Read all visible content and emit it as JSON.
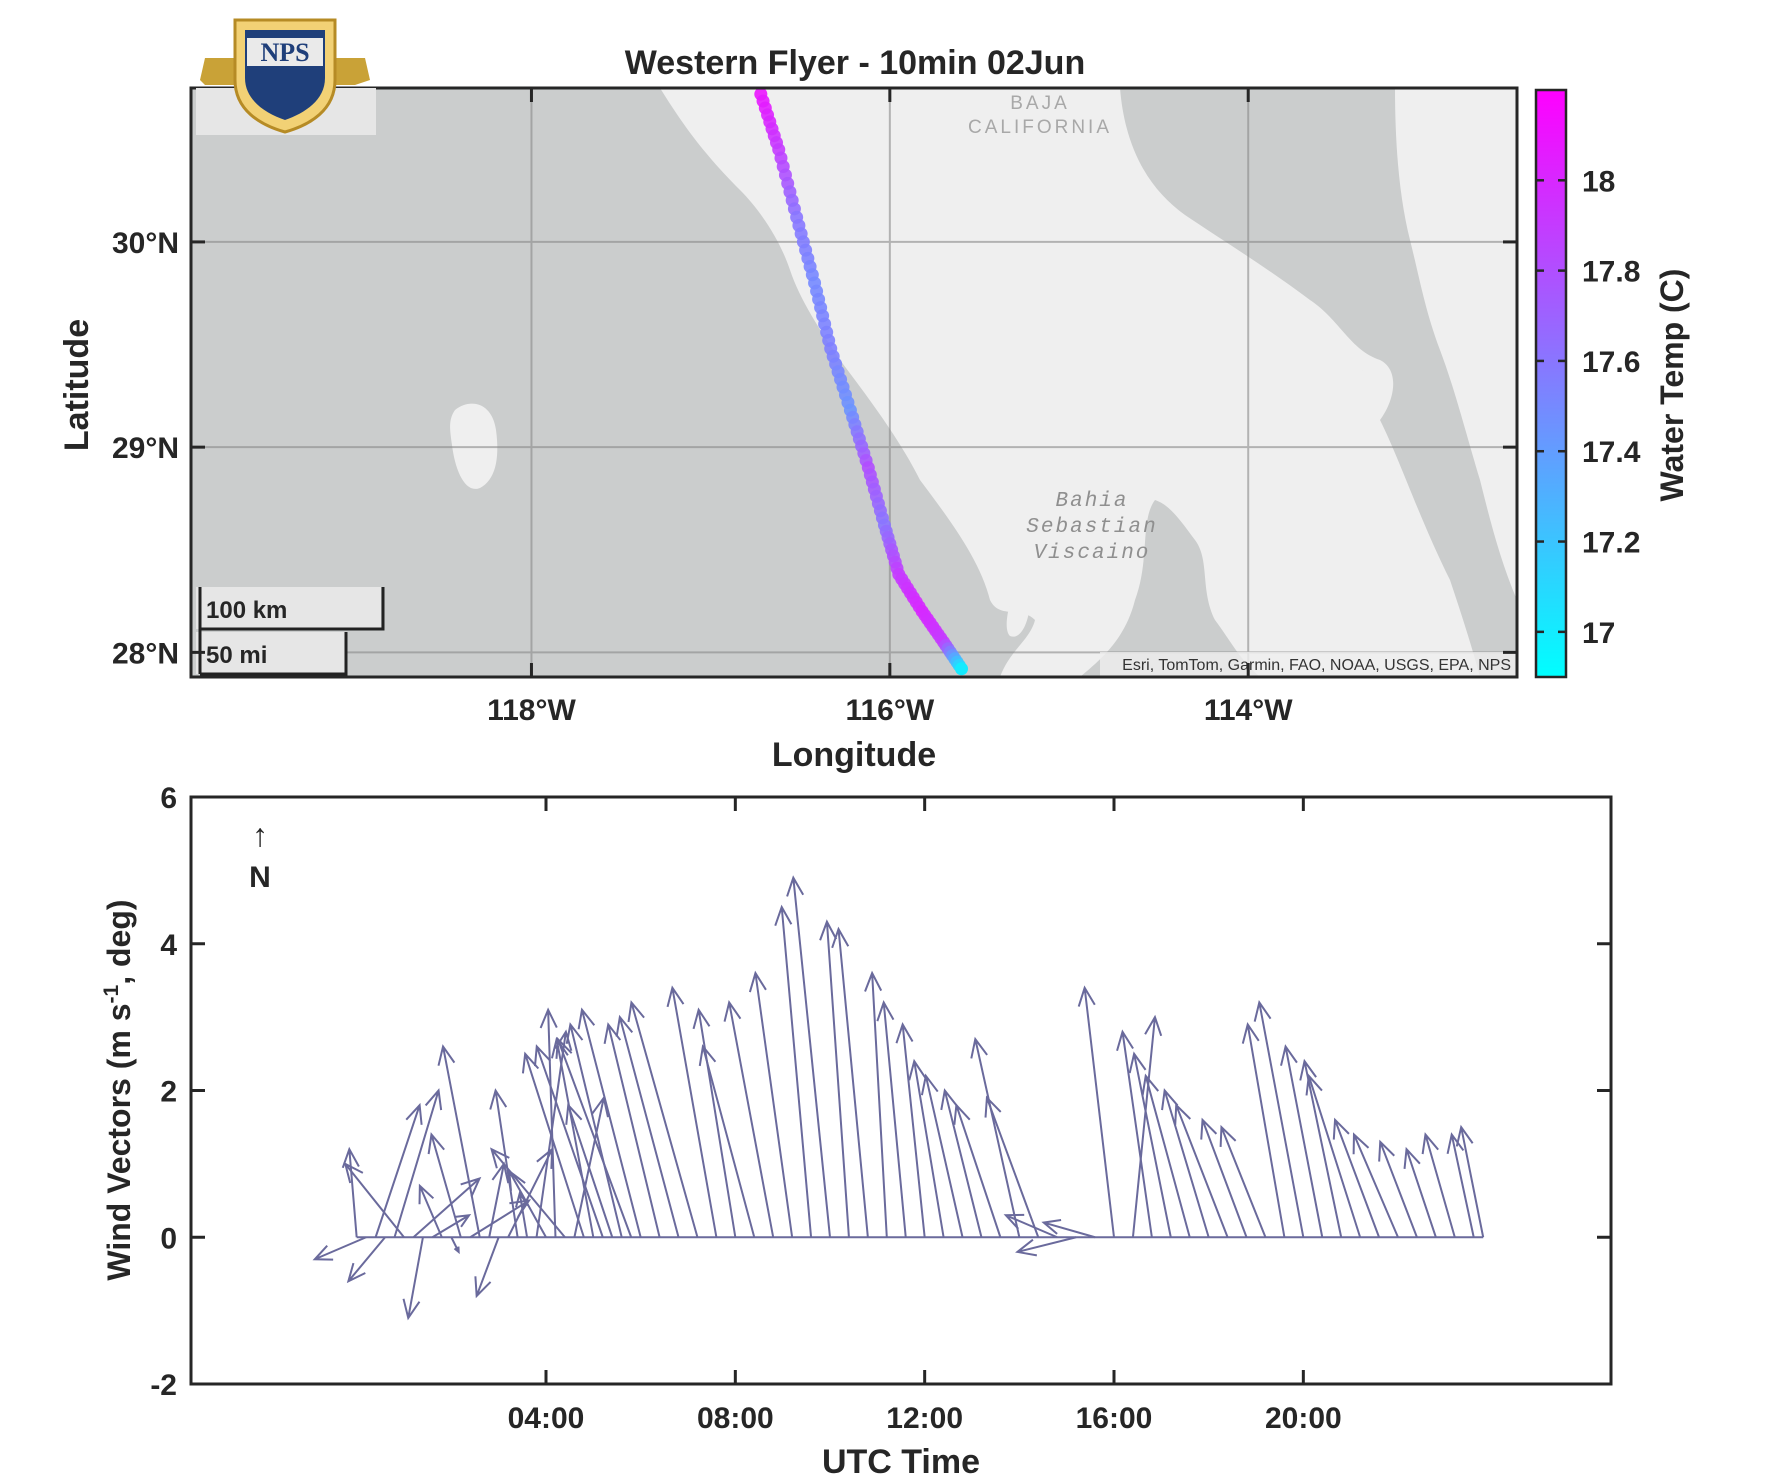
{
  "chart_data": [
    {
      "type": "scatter",
      "title": "Western Flyer - 10min 02Jun",
      "xlabel": "Longitude",
      "ylabel": "Latitude",
      "xlim": [
        -119.9,
        -112.5
      ],
      "ylim": [
        27.88,
        30.75
      ],
      "x_ticks": [
        "118°W",
        "116°W",
        "114°W"
      ],
      "x_tick_values": [
        -118,
        -116,
        -114
      ],
      "y_ticks": [
        "30°N",
        "29°N",
        "28°N"
      ],
      "y_tick_values": [
        30,
        29,
        28
      ],
      "grid": true,
      "basemap_labels": [
        "BAJA",
        "CALIFORNIA",
        "Bahia",
        "Sebastian",
        "Viscaino"
      ],
      "attribution": "Esri, TomTom, Garmin, FAO, NOAA, USGS, EPA, NPS",
      "scalebar": [
        "100 km",
        "50 mi"
      ],
      "logo_text": "NPS",
      "colorbar": {
        "label": "Water Temp (C)",
        "ticks": [
          "18",
          "17.8",
          "17.6",
          "17.4",
          "17.2",
          "17"
        ],
        "tick_values": [
          18,
          17.8,
          17.6,
          17.4,
          17.2,
          17
        ],
        "range": [
          16.9,
          18.2
        ],
        "colors": [
          "#00ffff",
          "#ff00ff"
        ]
      },
      "track": {
        "lon": [
          -116.72,
          -116.62,
          -116.52,
          -116.42,
          -116.33,
          -116.22,
          -116.12,
          -116.03,
          -115.95,
          -115.82,
          -115.7,
          -115.6
        ],
        "lat": [
          30.72,
          30.45,
          30.12,
          29.8,
          29.48,
          29.18,
          28.9,
          28.62,
          28.38,
          28.2,
          28.05,
          27.92
        ],
        "temp": [
          18.1,
          17.9,
          17.6,
          17.5,
          17.55,
          17.45,
          17.8,
          17.6,
          17.9,
          18.0,
          17.9,
          17.0
        ]
      }
    },
    {
      "type": "quiver",
      "xlabel": "UTC Time",
      "ylabel": "Wind Vectors (m s-1, deg)",
      "ylim": [
        -2,
        6
      ],
      "y_ticks": [
        6,
        4,
        2,
        0,
        -2
      ],
      "x_ticks": [
        "04:00",
        "08:00",
        "12:00",
        "16:00",
        "20:00"
      ],
      "x_tick_hours": [
        4,
        8,
        12,
        16,
        20
      ],
      "xlim_hours": [
        -3.5,
        26.5
      ],
      "north_arrow": {
        "arrow": "↑",
        "label": "N"
      },
      "color": "#6a6a9c",
      "vectors": {
        "t_hours": [
          0.0,
          0.2,
          0.4,
          0.6,
          0.8,
          1.0,
          1.2,
          1.4,
          1.6,
          1.8,
          2.0,
          2.2,
          2.4,
          2.6,
          2.8,
          3.0,
          3.2,
          3.4,
          3.6,
          3.8,
          4.0,
          4.2,
          4.4,
          4.6,
          4.8,
          5.0,
          5.2,
          5.4,
          5.6,
          5.8,
          6.0,
          6.4,
          6.8,
          7.2,
          7.6,
          8.0,
          8.4,
          8.8,
          9.2,
          9.6,
          10.0,
          10.4,
          10.8,
          11.2,
          11.6,
          12.0,
          12.4,
          12.8,
          13.2,
          13.6,
          14.0,
          14.4,
          14.8,
          15.2,
          15.6,
          16.0,
          16.4,
          16.8,
          17.2,
          17.6,
          18.0,
          18.4,
          18.8,
          19.2,
          19.6,
          20.0,
          20.4,
          20.8,
          21.2,
          21.6,
          22.0,
          22.4,
          22.8,
          23.2,
          23.6,
          23.8
        ],
        "u": [
          -0.1,
          -0.7,
          0.6,
          -0.5,
          0.6,
          -0.8,
          0.9,
          -0.2,
          0.5,
          -0.3,
          0.1,
          -0.4,
          0.8,
          -0.5,
          0.2,
          -0.3,
          0.6,
          -0.3,
          -0.1,
          0.4,
          -0.5,
          -0.1,
          -1.0,
          0.4,
          -0.8,
          -0.5,
          -0.9,
          -0.6,
          -0.7,
          -1.0,
          -0.8,
          -0.7,
          -0.8,
          -0.9,
          -0.6,
          -0.5,
          -0.7,
          -0.6,
          -0.5,
          -0.4,
          -0.5,
          -0.3,
          -0.4,
          -0.2,
          -0.3,
          -0.3,
          -0.4,
          -0.5,
          -0.5,
          -0.6,
          -0.6,
          -0.7,
          -0.7,
          -0.8,
          -0.7,
          -0.4,
          0.3,
          -0.4,
          -0.5,
          -0.6,
          -0.6,
          -0.7,
          -0.6,
          -0.6,
          -0.5,
          -0.6,
          -0.5,
          -0.5,
          -0.7,
          -0.6,
          -0.6,
          -0.5,
          -0.4,
          -0.4,
          -0.3,
          -0.3
        ],
        "v": [
          1.2,
          -0.3,
          1.8,
          -0.6,
          2.0,
          1.0,
          0.8,
          -1.1,
          0.3,
          0.7,
          -0.2,
          1.4,
          0.5,
          2.6,
          1.0,
          -0.8,
          1.2,
          2.0,
          0.6,
          2.8,
          0.9,
          3.1,
          1.2,
          1.9,
          2.5,
          2.7,
          2.6,
          1.8,
          2.9,
          2.7,
          3.1,
          2.9,
          3.0,
          3.2,
          3.4,
          3.1,
          2.6,
          3.2,
          3.6,
          4.5,
          4.9,
          4.3,
          4.2,
          3.6,
          3.2,
          2.9,
          2.4,
          2.2,
          2.0,
          1.8,
          2.7,
          1.9,
          0.3,
          -0.2,
          0.2,
          3.4,
          3.0,
          2.8,
          2.5,
          2.2,
          2.0,
          1.8,
          1.6,
          1.5,
          2.9,
          3.2,
          2.6,
          2.4,
          2.2,
          1.6,
          1.4,
          1.3,
          1.2,
          1.4,
          1.4,
          1.5
        ]
      }
    }
  ]
}
